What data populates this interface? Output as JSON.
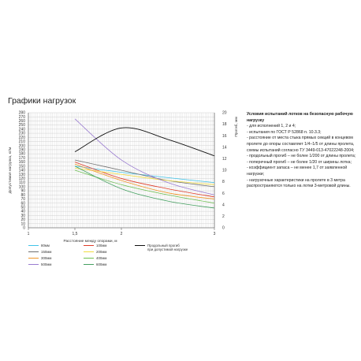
{
  "page_title": "Графики нагрузок",
  "colors": {
    "80мм": "#40c4e8",
    "100мм": "#e03c28",
    "150мм": "#707070",
    "200мм": "#f0dc40",
    "300мм": "#f09628",
    "400мм_1": "#6cbf50",
    "500мм": "#9a7cd0",
    "600мм": "#44a060",
    "deflection": "#111111",
    "grid": "#c8c8c8"
  },
  "chart_data": {
    "type": "line",
    "xlabel": "Расстояние между опорами, м",
    "ylabel_left": "Допустимая нагрузка, кг/м",
    "ylabel_right": "Прогиб, мм",
    "x_ticks": [
      "1",
      "1,5",
      "2",
      "3"
    ],
    "y_left_ticks": [
      "0",
      "10",
      "20",
      "30",
      "40",
      "50",
      "60",
      "70",
      "80",
      "90",
      "100",
      "110",
      "120",
      "130",
      "140",
      "150",
      "160",
      "170",
      "180",
      "190",
      "200",
      "210",
      "220",
      "230",
      "240",
      "250",
      "260",
      "270",
      "280"
    ],
    "y_right_ticks": [
      "0",
      "2",
      "4",
      "6",
      "8",
      "10",
      "12",
      "14",
      "16",
      "18",
      "20"
    ],
    "ylim_left": [
      0,
      280
    ],
    "ylim_right": [
      0,
      20
    ],
    "x_domain": [
      1,
      3
    ],
    "series": [
      {
        "name": "80мм",
        "color_key": "80мм",
        "x": [
          1.5,
          2,
          2.5,
          3
        ],
        "y": [
          150,
          135,
          122,
          110
        ]
      },
      {
        "name": "100мм",
        "color_key": "100мм",
        "x": [
          1.5,
          2,
          2.5,
          3
        ],
        "y": [
          160,
          120,
          95,
          75
        ]
      },
      {
        "name": "150мм",
        "color_key": "150мм",
        "x": [
          1.5,
          2,
          2.5,
          3
        ],
        "y": [
          165,
          140,
          115,
          100
        ]
      },
      {
        "name": "200мм",
        "color_key": "200мм",
        "x": [
          1.5,
          2,
          2.5,
          3
        ],
        "y": [
          145,
          130,
          115,
          105
        ]
      },
      {
        "name": "300мм",
        "color_key": "300мм",
        "x": [
          1.5,
          2,
          2.5,
          3
        ],
        "y": [
          155,
          115,
          85,
          70
        ]
      },
      {
        "name": "400мм",
        "color_key": "400мм_1",
        "x": [
          1.5,
          2,
          2.5,
          3
        ],
        "y": [
          140,
          105,
          80,
          60
        ]
      },
      {
        "name": "500мм",
        "color_key": "500мм",
        "x": [
          1.5,
          2,
          2.5,
          3
        ],
        "y": [
          265,
          165,
          110,
          80
        ]
      },
      {
        "name": "600мм",
        "color_key": "600мм",
        "x": [
          1.5,
          2,
          2.5,
          3
        ],
        "y": [
          150,
          95,
          65,
          48
        ]
      },
      {
        "name": "",
        "color_key": "deflection",
        "x": [
          1.5,
          2,
          2.5,
          3
        ],
        "y": [
          185,
          243,
          215,
          175
        ]
      }
    ],
    "legend": [
      {
        "label": "80мм",
        "color_key": "80мм"
      },
      {
        "label": "100мм",
        "color_key": "100мм"
      },
      {
        "label": "Продольный прогиб\nпри допустимой нагрузке",
        "color_key": "deflection"
      },
      {
        "label": "150мм",
        "color_key": "150мм"
      },
      {
        "label": "200мм",
        "color_key": "200мм"
      },
      {
        "label": "300мм",
        "color_key": "300мм"
      },
      {
        "label": "400мм",
        "color_key": "400мм_1"
      },
      {
        "label": "500мм",
        "color_key": "500мм"
      },
      {
        "label": "600мм",
        "color_key": "600мм"
      }
    ]
  },
  "conditions": {
    "heading": "Условия испытаний лотков на безопасную рабочую нагрузку",
    "lines": [
      "- для исполнений 1, 2 и 4;",
      "- испытания по ГОСТ Р 52868 п. 10.3.3;",
      "- расстояние от места стыка прямых секций в концевом пролете до опоры составляет 1/4–1/5 от длины пролета, схемы испытаний согласно ТУ 3449-013-47022248-2004;",
      "- продольный прогиб – не более 1/200 от длины пролета;",
      "- поперечный прогиб – не более 1/20 от ширины лотка;",
      "- коэффициент запаса – не менее 1,7 от заявленной нагрузки;",
      "- нагрузочные характеристики на пролете в 3 метра распространяются только на лотки 3-метровой длины."
    ]
  }
}
